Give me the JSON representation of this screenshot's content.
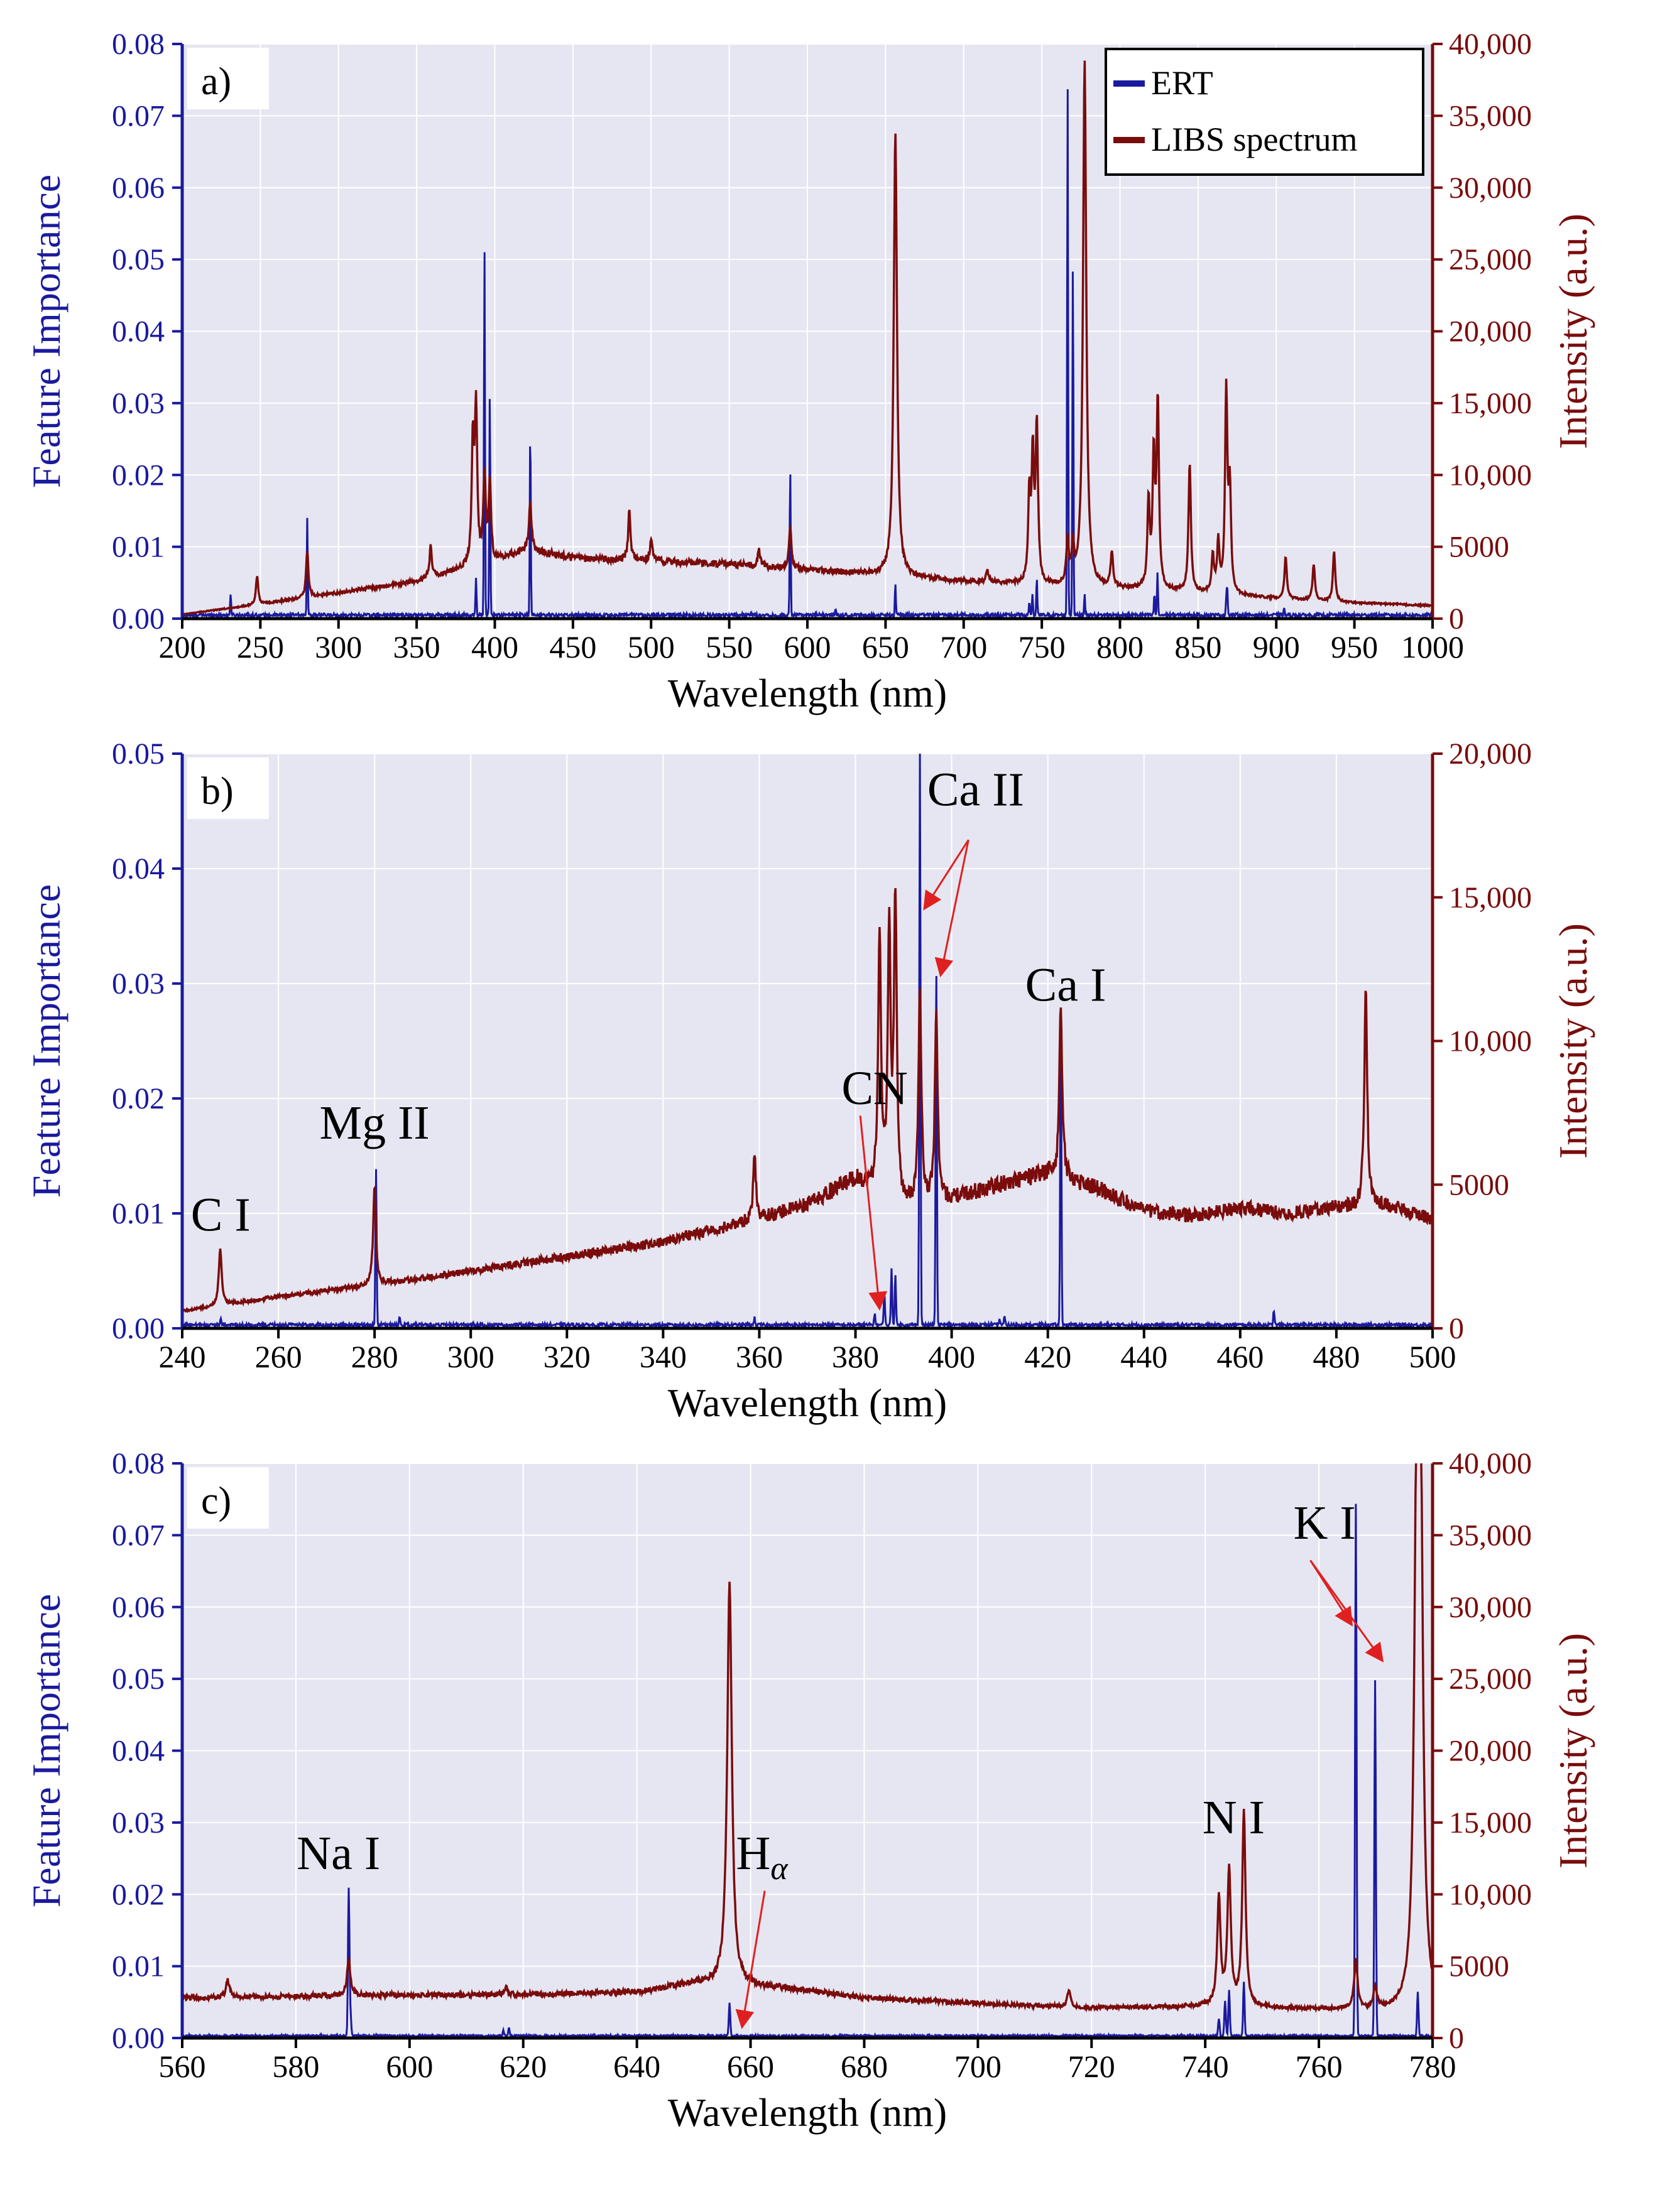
{
  "colors": {
    "ert": "#1a1a9e",
    "libs": "#7a0c0c",
    "plot_bg": "#e6e6f2",
    "grid": "#ffffff",
    "annotation_arrow": "#e02020"
  },
  "chart_data": [
    {
      "id": "a",
      "type": "line",
      "panel_label": "a)",
      "xlabel": "Wavelength (nm)",
      "ylabel_left": "Feature Importance",
      "ylabel_right": "Intensity (a.u.)",
      "xlim": [
        200,
        1000
      ],
      "ylim_left": [
        0,
        0.08
      ],
      "ylim_right": [
        0,
        40000
      ],
      "xticks": [
        200,
        250,
        300,
        350,
        400,
        450,
        500,
        550,
        600,
        650,
        700,
        750,
        800,
        850,
        900,
        950,
        1000
      ],
      "yticks_left": [
        "0.00",
        "0.01",
        "0.02",
        "0.03",
        "0.04",
        "0.05",
        "0.06",
        "0.07",
        "0.08"
      ],
      "yticks_right": [
        "0",
        "5000",
        "10,000",
        "15,000",
        "20,000",
        "25,000",
        "30,000",
        "35,000",
        "40,000"
      ],
      "legend": {
        "position": "top-right",
        "entries": [
          "ERT",
          "LIBS spectrum"
        ]
      },
      "annotations": [],
      "series": [
        {
          "name": "ERT",
          "axis": "left",
          "baseline": 0.0005,
          "peaks": [
            [
              231,
              0.003
            ],
            [
              280,
              0.0135
            ],
            [
              388,
              0.005
            ],
            [
              393.4,
              0.0515
            ],
            [
              396.8,
              0.031
            ],
            [
              422.7,
              0.0265
            ],
            [
              589,
              0.0205
            ],
            [
              618,
              0.001
            ],
            [
              656.3,
              0.0045
            ],
            [
              742,
              0.002
            ],
            [
              744,
              0.003
            ],
            [
              746.8,
              0.005
            ],
            [
              766.5,
              0.074
            ],
            [
              769.9,
              0.0495
            ],
            [
              777.4,
              0.003
            ],
            [
              822,
              0.003
            ],
            [
              824,
              0.006
            ],
            [
              868.6,
              0.004
            ],
            [
              868,
              0.002
            ],
            [
              905,
              0.001
            ]
          ]
        },
        {
          "name": "LIBS spectrum",
          "axis": "right",
          "continuum": [
            [
              200,
              300
            ],
            [
              250,
              1000
            ],
            [
              300,
              1800
            ],
            [
              350,
              2600
            ],
            [
              380,
              3500
            ],
            [
              400,
              4000
            ],
            [
              420,
              4800
            ],
            [
              450,
              4200
            ],
            [
              500,
              4000
            ],
            [
              550,
              3800
            ],
            [
              600,
              3400
            ],
            [
              650,
              3000
            ],
            [
              700,
              2600
            ],
            [
              750,
              2300
            ],
            [
              800,
              2100
            ],
            [
              850,
              1800
            ],
            [
              900,
              1400
            ],
            [
              950,
              1100
            ],
            [
              1000,
              900
            ]
          ],
          "peaks": [
            [
              247.9,
              2000
            ],
            [
              280,
              3200
            ],
            [
              359,
              2200
            ],
            [
              386,
              8500
            ],
            [
              388,
              10500
            ],
            [
              393.4,
              6000
            ],
            [
              396.8,
              5500
            ],
            [
              422.7,
              3500
            ],
            [
              486.1,
              3500
            ],
            [
              500,
              1500
            ],
            [
              569,
              1200
            ],
            [
              589,
              3000
            ],
            [
              656.3,
              31000
            ],
            [
              715,
              900
            ],
            [
              742,
              6000
            ],
            [
              744.2,
              8500
            ],
            [
              746.8,
              11000
            ],
            [
              766.5,
              3000
            ],
            [
              769.9,
              2500
            ],
            [
              777.4,
              36500
            ],
            [
              794.8,
              2500
            ],
            [
              818.3,
              6000
            ],
            [
              821.6,
              9000
            ],
            [
              824.2,
              13000
            ],
            [
              844.6,
              9000
            ],
            [
              859.4,
              2500
            ],
            [
              862.9,
              3500
            ],
            [
              868,
              14000
            ],
            [
              870.3,
              7000
            ],
            [
              906,
              3000
            ],
            [
              924,
              2500
            ],
            [
              937,
              3500
            ]
          ]
        }
      ]
    },
    {
      "id": "b",
      "type": "line",
      "panel_label": "b)",
      "xlabel": "Wavelength (nm)",
      "ylabel_left": "Feature Importance",
      "ylabel_right": "Intensity (a.u.)",
      "xlim": [
        240,
        500
      ],
      "ylim_left": [
        0,
        0.05
      ],
      "ylim_right": [
        0,
        20000
      ],
      "xticks": [
        240,
        260,
        280,
        300,
        320,
        340,
        360,
        380,
        400,
        420,
        440,
        460,
        480,
        500
      ],
      "yticks_left": [
        "0.00",
        "0.01",
        "0.02",
        "0.03",
        "0.04",
        "0.05"
      ],
      "yticks_right": [
        "0",
        "5000",
        "10,000",
        "15,000",
        "20,000"
      ],
      "legend": null,
      "annotations": [
        {
          "text": "C I",
          "x": 248,
          "y_left": 0.0085,
          "arrows": []
        },
        {
          "text": "Mg II",
          "x": 280,
          "y_left": 0.0165,
          "arrows": []
        },
        {
          "text": "CN",
          "x": 384,
          "y_left": 0.0195,
          "arrows": [
            {
              "from": [
                381,
                0.0185
              ],
              "to": [
                385,
                0.0017
              ]
            }
          ]
        },
        {
          "text": "Ca II",
          "x": 405,
          "y_left": 0.0455,
          "arrows": [
            {
              "from": [
                403.5,
                0.0425
              ],
              "to": [
                394.3,
                0.0365
              ]
            },
            {
              "from": [
                403.5,
                0.0425
              ],
              "to": [
                397.7,
                0.0307
              ]
            }
          ]
        },
        {
          "text": "Ca I",
          "x": 423.7,
          "y_left": 0.0285,
          "arrows": []
        }
      ],
      "series": [
        {
          "name": "ERT",
          "axis": "left",
          "baseline": 0.0003,
          "peaks": [
            [
              248,
              0.0005
            ],
            [
              280.3,
              0.0135
            ],
            [
              285.2,
              0.0007
            ],
            [
              359,
              0.0006
            ],
            [
              384,
              0.001
            ],
            [
              386,
              0.003
            ],
            [
              387.5,
              0.005
            ],
            [
              388.3,
              0.0045
            ],
            [
              393.4,
              0.05
            ],
            [
              396.8,
              0.031
            ],
            [
              410,
              0.0005
            ],
            [
              411,
              0.0007
            ],
            [
              422.7,
              0.0265
            ],
            [
              467,
              0.0013
            ]
          ]
        },
        {
          "name": "LIBS spectrum",
          "axis": "right",
          "continuum": [
            [
              240,
              600
            ],
            [
              260,
              1100
            ],
            [
              280,
              1500
            ],
            [
              300,
              2000
            ],
            [
              320,
              2500
            ],
            [
              340,
              3000
            ],
            [
              355,
              3600
            ],
            [
              370,
              4300
            ],
            [
              380,
              5200
            ],
            [
              390,
              4200
            ],
            [
              400,
              4500
            ],
            [
              410,
              5000
            ],
            [
              420,
              5400
            ],
            [
              430,
              4900
            ],
            [
              440,
              4100
            ],
            [
              450,
              3900
            ],
            [
              460,
              4200
            ],
            [
              470,
              4000
            ],
            [
              480,
              4200
            ],
            [
              490,
              4300
            ],
            [
              500,
              3800
            ]
          ],
          "peaks": [
            [
              247.9,
              2000
            ],
            [
              280,
              3400
            ],
            [
              359,
              2200
            ],
            [
              385,
              9000
            ],
            [
              387,
              9000
            ],
            [
              388.3,
              10500
            ],
            [
              393.4,
              7500
            ],
            [
              396.8,
              6500
            ],
            [
              422.7,
              6000
            ],
            [
              486.1,
              7800
            ]
          ]
        }
      ]
    },
    {
      "id": "c",
      "type": "line",
      "panel_label": "c)",
      "xlabel": "Wavelength (nm)",
      "ylabel_left": "Feature Importance",
      "ylabel_right": "Intensity (a.u.)",
      "xlim": [
        560,
        780
      ],
      "ylim_left": [
        0,
        0.08
      ],
      "ylim_right": [
        0,
        40000
      ],
      "xticks": [
        560,
        580,
        600,
        620,
        640,
        660,
        680,
        700,
        720,
        740,
        760,
        780
      ],
      "yticks_left": [
        "0.00",
        "0.01",
        "0.02",
        "0.03",
        "0.04",
        "0.05",
        "0.06",
        "0.07",
        "0.08"
      ],
      "yticks_right": [
        "0",
        "5000",
        "10,000",
        "15,000",
        "20,000",
        "25,000",
        "30,000",
        "35,000",
        "40,000"
      ],
      "legend": null,
      "annotations": [
        {
          "text": "Na I",
          "x": 587.5,
          "y_left": 0.0235,
          "arrows": []
        },
        {
          "text": "H",
          "subscript": "α",
          "x": 662,
          "y_left": 0.0235,
          "arrows": [
            {
              "from": [
                662.5,
                0.0205
              ],
              "to": [
                658.5,
                0.0015
              ]
            }
          ]
        },
        {
          "text": "N I",
          "x": 745,
          "y_left": 0.0285,
          "arrows": []
        },
        {
          "text": "K I",
          "x": 761,
          "y_left": 0.0695,
          "arrows": [
            {
              "from": [
                758.5,
                0.0665
              ],
              "to": [
                765.8,
                0.0575
              ]
            },
            {
              "from": [
                758.5,
                0.0665
              ],
              "to": [
                771.2,
                0.0525
              ]
            }
          ]
        }
      ],
      "series": [
        {
          "name": "ERT",
          "axis": "left",
          "baseline": 0.0003,
          "peaks": [
            [
              589.3,
              0.0205
            ],
            [
              589.6,
              0.003
            ],
            [
              616.5,
              0.0007
            ],
            [
              617.5,
              0.0011
            ],
            [
              656.3,
              0.0045
            ],
            [
              742.4,
              0.0025
            ],
            [
              743.5,
              0.005
            ],
            [
              744.2,
              0.0065
            ],
            [
              746.8,
              0.0075
            ],
            [
              766.5,
              0.074
            ],
            [
              769.9,
              0.0495
            ],
            [
              777.4,
              0.006
            ]
          ]
        },
        {
          "name": "LIBS spectrum",
          "axis": "right",
          "continuum": [
            [
              560,
              2800
            ],
            [
              580,
              2900
            ],
            [
              600,
              3000
            ],
            [
              620,
              3000
            ],
            [
              640,
              3200
            ],
            [
              650,
              3800
            ],
            [
              665,
              3500
            ],
            [
              680,
              2800
            ],
            [
              700,
              2400
            ],
            [
              720,
              2100
            ],
            [
              740,
              2200
            ],
            [
              760,
              2000
            ],
            [
              780,
              1800
            ]
          ],
          "peaks": [
            [
              568,
              1200
            ],
            [
              589.3,
              2600
            ],
            [
              617,
              600
            ],
            [
              656.3,
              28000
            ],
            [
              716,
              1200
            ],
            [
              742.4,
              7500
            ],
            [
              744.2,
              9500
            ],
            [
              746.8,
              13500
            ],
            [
              766.5,
              3500
            ],
            [
              769.9,
              1500
            ],
            [
              777.2,
              33500
            ],
            [
              777.9,
              33000
            ]
          ]
        }
      ]
    }
  ]
}
